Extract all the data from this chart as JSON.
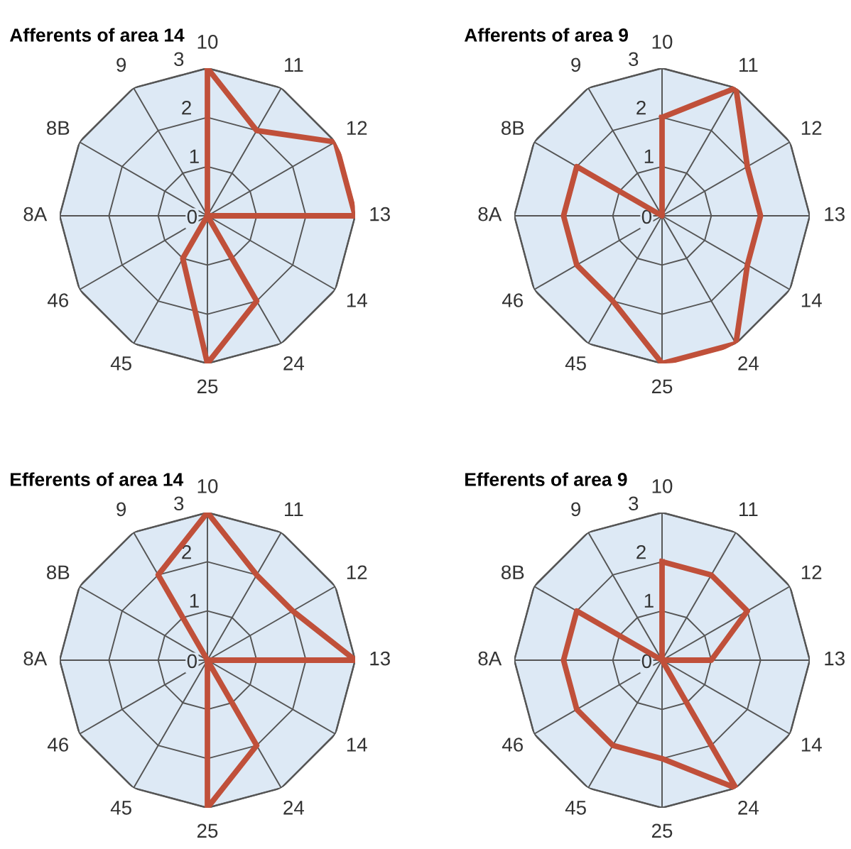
{
  "chart_data": [
    {
      "type": "radar",
      "title": "Afferents of area 14",
      "categories": [
        "10",
        "11",
        "12",
        "13",
        "14",
        "24",
        "25",
        "45",
        "46",
        "8A",
        "8B",
        "9"
      ],
      "ylim": [
        0,
        3
      ],
      "yticks": [
        0,
        1,
        2,
        3
      ],
      "grid": true,
      "series": [
        {
          "color": "#c0503a",
          "values": [
            3,
            2,
            3,
            3,
            0,
            2,
            3,
            1,
            0,
            0,
            0,
            0
          ]
        }
      ]
    },
    {
      "type": "radar",
      "title": "Afferents of area 9",
      "categories": [
        "10",
        "11",
        "12",
        "13",
        "14",
        "24",
        "25",
        "45",
        "46",
        "8A",
        "8B",
        "9"
      ],
      "ylim": [
        0,
        3
      ],
      "yticks": [
        0,
        1,
        2,
        3
      ],
      "grid": true,
      "series": [
        {
          "color": "#c0503a",
          "values": [
            2,
            3,
            2,
            2,
            2,
            3,
            3,
            2,
            2,
            2,
            2,
            0
          ]
        }
      ]
    },
    {
      "type": "radar",
      "title": "Efferents of area 14",
      "categories": [
        "10",
        "11",
        "12",
        "13",
        "14",
        "24",
        "25",
        "45",
        "46",
        "8A",
        "8B",
        "9"
      ],
      "ylim": [
        0,
        3
      ],
      "yticks": [
        0,
        1,
        2,
        3
      ],
      "grid": true,
      "series": [
        {
          "color": "#c0503a",
          "values": [
            3,
            2,
            2,
            3,
            0,
            2,
            3,
            0,
            0,
            0,
            0,
            2
          ]
        }
      ]
    },
    {
      "type": "radar",
      "title": "Efferents of area 9",
      "categories": [
        "10",
        "11",
        "12",
        "13",
        "14",
        "24",
        "25",
        "45",
        "46",
        "8A",
        "8B",
        "9"
      ],
      "ylim": [
        0,
        3
      ],
      "yticks": [
        0,
        1,
        2,
        3
      ],
      "grid": true,
      "series": [
        {
          "color": "#c0503a",
          "values": [
            2,
            2,
            2,
            1,
            0,
            3,
            2,
            2,
            2,
            2,
            2,
            0
          ]
        }
      ]
    }
  ]
}
